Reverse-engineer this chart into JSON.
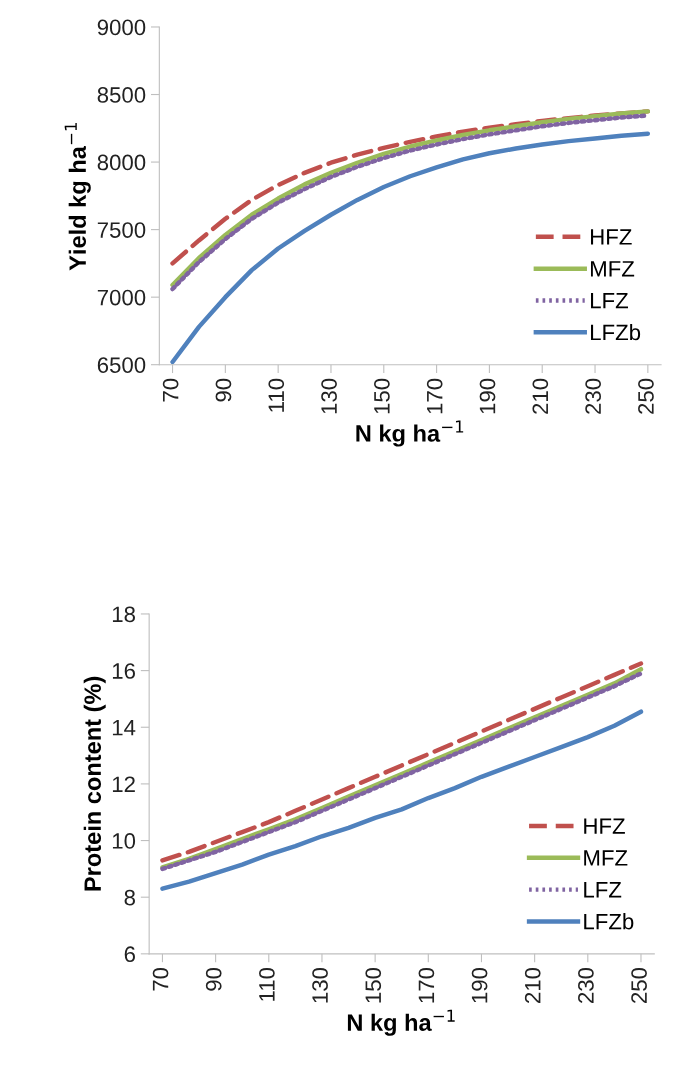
{
  "chart_data": [
    {
      "type": "line",
      "xlabel": "N kg ha$^{−1}$",
      "ylabel": "Yield kg ha$^{−1}$",
      "x": [
        70,
        80,
        90,
        100,
        110,
        120,
        130,
        140,
        150,
        160,
        170,
        180,
        190,
        200,
        210,
        220,
        230,
        240,
        250
      ],
      "xlim": [
        65,
        255
      ],
      "xticks": [
        70,
        90,
        110,
        130,
        150,
        170,
        190,
        210,
        230,
        250
      ],
      "ylim": [
        6500,
        9000
      ],
      "yticks": [
        6500,
        7000,
        7500,
        8000,
        8500,
        9000
      ],
      "grid": false,
      "legend": "lower right",
      "marker": "none",
      "series": [
        {
          "name": "HFZ",
          "color": "#c0504d",
          "line_style": "dashed",
          "values": [
            7250,
            7420,
            7580,
            7720,
            7830,
            7920,
            7995,
            8055,
            8105,
            8150,
            8190,
            8225,
            8255,
            8280,
            8305,
            8325,
            8345,
            8360,
            8375
          ]
        },
        {
          "name": "MFZ",
          "color": "#9bbb59",
          "line_style": "solid",
          "values": [
            7090,
            7290,
            7460,
            7610,
            7730,
            7835,
            7920,
            7995,
            8060,
            8115,
            8160,
            8200,
            8235,
            8265,
            8295,
            8320,
            8340,
            8360,
            8375
          ]
        },
        {
          "name": "LFZ",
          "color": "#8064a2",
          "line_style": "dotted",
          "values": [
            7060,
            7260,
            7430,
            7580,
            7700,
            7800,
            7890,
            7965,
            8030,
            8085,
            8130,
            8170,
            8205,
            8235,
            8265,
            8290,
            8310,
            8330,
            8345
          ]
        },
        {
          "name": "LFZb",
          "color": "#4f81bd",
          "line_style": "solid",
          "values": [
            6520,
            6780,
            7000,
            7200,
            7360,
            7490,
            7610,
            7720,
            7815,
            7895,
            7960,
            8020,
            8065,
            8100,
            8130,
            8155,
            8175,
            8195,
            8210
          ]
        }
      ]
    },
    {
      "type": "line",
      "xlabel": "N kg ha$^{−1}$",
      "ylabel": "Protein content (%)",
      "x": [
        70,
        80,
        90,
        100,
        110,
        120,
        130,
        140,
        150,
        160,
        170,
        180,
        190,
        200,
        210,
        220,
        230,
        240,
        250
      ],
      "xlim": [
        65,
        255
      ],
      "xticks": [
        70,
        90,
        110,
        130,
        150,
        170,
        190,
        210,
        230,
        250
      ],
      "ylim": [
        6,
        18
      ],
      "yticks": [
        6,
        8,
        10,
        12,
        14,
        16,
        18
      ],
      "grid": false,
      "legend": "lower right",
      "marker": "none",
      "series": [
        {
          "name": "HFZ",
          "color": "#c0504d",
          "line_style": "dashed",
          "values": [
            9.3,
            9.6,
            9.95,
            10.3,
            10.65,
            11.05,
            11.45,
            11.85,
            12.25,
            12.65,
            13.05,
            13.45,
            13.85,
            14.25,
            14.65,
            15.05,
            15.45,
            15.85,
            16.25
          ]
        },
        {
          "name": "MFZ",
          "color": "#9bbb59",
          "line_style": "solid",
          "values": [
            9.05,
            9.35,
            9.7,
            10.05,
            10.4,
            10.75,
            11.15,
            11.55,
            11.95,
            12.35,
            12.75,
            13.15,
            13.55,
            13.95,
            14.35,
            14.75,
            15.15,
            15.55,
            16.05
          ]
        },
        {
          "name": "LFZ",
          "color": "#8064a2",
          "line_style": "dotted",
          "values": [
            9.0,
            9.3,
            9.6,
            9.95,
            10.3,
            10.65,
            11.05,
            11.45,
            11.85,
            12.25,
            12.65,
            13.05,
            13.45,
            13.85,
            14.25,
            14.65,
            15.05,
            15.45,
            15.9
          ]
        },
        {
          "name": "LFZb",
          "color": "#4f81bd",
          "line_style": "solid",
          "values": [
            8.3,
            8.55,
            8.85,
            9.15,
            9.5,
            9.8,
            10.15,
            10.45,
            10.8,
            11.1,
            11.5,
            11.85,
            12.25,
            12.6,
            12.95,
            13.3,
            13.65,
            14.05,
            14.55
          ]
        }
      ]
    }
  ]
}
